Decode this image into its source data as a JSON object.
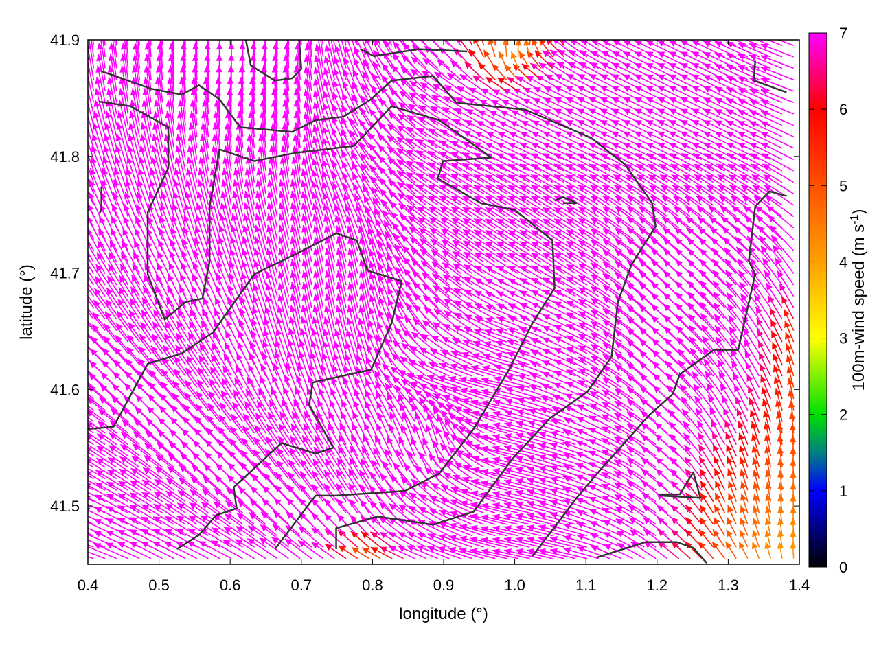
{
  "chart_data": {
    "type": "vector-field",
    "xlabel": "longitude (°)",
    "ylabel": "latitude (°)",
    "xlim": [
      0.4,
      1.4
    ],
    "ylim": [
      41.45,
      41.9
    ],
    "xticks": [
      "0.4",
      "0.5",
      "0.6",
      "0.7",
      "0.8",
      "0.9",
      "1.0",
      "1.1",
      "1.2",
      "1.3",
      "1.4"
    ],
    "yticks": [
      "41.5",
      "41.6",
      "41.7",
      "41.8",
      "41.9"
    ],
    "colorbar": {
      "label_main": "100m-wind speed (m s",
      "label_sup": "-1",
      "label_end": ")",
      "range": [
        0,
        7
      ],
      "ticks": [
        "0",
        "1",
        "2",
        "3",
        "4",
        "5",
        "6",
        "7"
      ],
      "stops": [
        {
          "value": 0,
          "color": "#000000"
        },
        {
          "value": 1,
          "color": "#0000ff"
        },
        {
          "value": 1.5,
          "color": "#008080"
        },
        {
          "value": 2,
          "color": "#00e000"
        },
        {
          "value": 3,
          "color": "#ffff00"
        },
        {
          "value": 4,
          "color": "#ffa000"
        },
        {
          "value": 5,
          "color": "#ff5000"
        },
        {
          "value": 6,
          "color": "#ff0000"
        },
        {
          "value": 7,
          "color": "#ff00ff"
        }
      ]
    },
    "vector_grid": {
      "lon": [
        0.4,
        0.5,
        0.6,
        0.7,
        0.8,
        0.9,
        1.0,
        1.1,
        1.2,
        1.3,
        1.4
      ],
      "lat": [
        41.9,
        41.85,
        41.8,
        41.75,
        41.7,
        41.65,
        41.6,
        41.55,
        41.5,
        41.45
      ],
      "uv_ms": [
        [
          [
            -1,
            9
          ],
          [
            -0.5,
            9
          ],
          [
            0,
            9
          ],
          [
            0,
            9
          ],
          [
            -3,
            8
          ],
          [
            -6,
            6
          ],
          [
            3,
            5
          ],
          [
            -6,
            5
          ],
          [
            -8,
            4
          ],
          [
            -8,
            4
          ],
          [
            -8,
            3
          ]
        ],
        [
          [
            -2,
            9
          ],
          [
            -1,
            9
          ],
          [
            0,
            9
          ],
          [
            -1,
            9
          ],
          [
            -4,
            8
          ],
          [
            -7,
            5
          ],
          [
            -6,
            3
          ],
          [
            -8,
            4
          ],
          [
            -8,
            4
          ],
          [
            -8,
            4
          ],
          [
            -8,
            3
          ]
        ],
        [
          [
            -3,
            9
          ],
          [
            -2,
            9
          ],
          [
            -1,
            9
          ],
          [
            -1,
            9
          ],
          [
            -5,
            7
          ],
          [
            -8,
            5
          ],
          [
            -8,
            4
          ],
          [
            -8,
            4
          ],
          [
            -8,
            4
          ],
          [
            -8,
            4
          ],
          [
            -8,
            4
          ]
        ],
        [
          [
            -4,
            9
          ],
          [
            -3,
            9
          ],
          [
            -2,
            9
          ],
          [
            -2,
            9
          ],
          [
            -4,
            8
          ],
          [
            -8,
            5
          ],
          [
            -8,
            5
          ],
          [
            -8,
            5
          ],
          [
            -7,
            5
          ],
          [
            -7,
            5
          ],
          [
            -7,
            5
          ]
        ],
        [
          [
            -5,
            8
          ],
          [
            -4,
            8
          ],
          [
            -3,
            9
          ],
          [
            -2,
            9
          ],
          [
            -2,
            9
          ],
          [
            -7,
            6
          ],
          [
            -8,
            5
          ],
          [
            -8,
            5
          ],
          [
            -7,
            6
          ],
          [
            -6,
            6
          ],
          [
            -5,
            7
          ]
        ],
        [
          [
            -6,
            7
          ],
          [
            -5,
            8
          ],
          [
            -4,
            8
          ],
          [
            -2,
            9
          ],
          [
            -2,
            9
          ],
          [
            -6,
            6
          ],
          [
            -8,
            3
          ],
          [
            -8,
            4
          ],
          [
            -7,
            6
          ],
          [
            -6,
            7
          ],
          [
            -2,
            5
          ]
        ],
        [
          [
            -7,
            6
          ],
          [
            -6,
            7
          ],
          [
            -5,
            8
          ],
          [
            -3,
            9
          ],
          [
            -3,
            8
          ],
          [
            -8,
            3
          ],
          [
            -9,
            2
          ],
          [
            -8,
            4
          ],
          [
            -7,
            6
          ],
          [
            -5,
            7
          ],
          [
            -1,
            5
          ]
        ],
        [
          [
            -8,
            5
          ],
          [
            -7,
            6
          ],
          [
            -6,
            7
          ],
          [
            -5,
            8
          ],
          [
            -4,
            8
          ],
          [
            -2,
            8
          ],
          [
            -9,
            2
          ],
          [
            -9,
            3
          ],
          [
            -7,
            5
          ],
          [
            -3,
            6
          ],
          [
            0,
            5
          ]
        ],
        [
          [
            -8,
            4
          ],
          [
            -8,
            5
          ],
          [
            -7,
            6
          ],
          [
            -6,
            7
          ],
          [
            -5,
            8
          ],
          [
            -7,
            5
          ],
          [
            -9,
            2
          ],
          [
            -9,
            3
          ],
          [
            -7,
            5
          ],
          [
            -2,
            5
          ],
          [
            0,
            4.5
          ]
        ],
        [
          [
            -9,
            3
          ],
          [
            -8,
            4
          ],
          [
            -8,
            4
          ],
          [
            -7,
            5
          ],
          [
            -4,
            2
          ],
          [
            -8,
            3
          ],
          [
            -9,
            2
          ],
          [
            -9,
            2
          ],
          [
            -6,
            4
          ],
          [
            -3,
            4
          ],
          [
            0,
            4
          ]
        ]
      ]
    },
    "contour_color": "#333333",
    "contours": [
      [
        [
          0.419,
          41.873
        ],
        [
          0.489,
          41.858
        ],
        [
          0.532,
          41.853
        ],
        [
          0.556,
          41.861
        ],
        [
          0.585,
          41.849
        ],
        [
          0.614,
          41.825
        ],
        [
          0.687,
          41.821
        ],
        [
          0.72,
          41.831
        ],
        [
          0.759,
          41.834
        ],
        [
          0.798,
          41.849
        ],
        [
          0.827,
          41.865
        ],
        [
          0.885,
          41.869
        ],
        [
          0.918,
          41.846
        ],
        [
          1.015,
          41.84
        ],
        [
          1.107,
          41.816
        ],
        [
          1.155,
          41.793
        ],
        [
          1.193,
          41.76
        ],
        [
          1.198,
          41.74
        ],
        [
          1.164,
          41.707
        ],
        [
          1.145,
          41.675
        ],
        [
          1.136,
          41.628
        ],
        [
          1.102,
          41.598
        ],
        [
          1.049,
          41.575
        ],
        [
          0.996,
          41.54
        ],
        [
          0.942,
          41.495
        ],
        [
          0.885,
          41.484
        ],
        [
          0.807,
          41.491
        ],
        [
          0.749,
          41.481
        ],
        [
          0.749,
          41.463
        ]
      ],
      [
        [
          0.416,
          41.847
        ],
        [
          0.46,
          41.843
        ],
        [
          0.513,
          41.825
        ],
        [
          0.513,
          41.79
        ],
        [
          0.484,
          41.752
        ],
        [
          0.484,
          41.699
        ],
        [
          0.508,
          41.66
        ],
        [
          0.537,
          41.675
        ],
        [
          0.561,
          41.678
        ],
        [
          0.571,
          41.71
        ],
        [
          0.571,
          41.757
        ],
        [
          0.585,
          41.806
        ],
        [
          0.634,
          41.796
        ],
        [
          0.692,
          41.803
        ],
        [
          0.774,
          41.809
        ],
        [
          0.827,
          41.843
        ],
        [
          0.894,
          41.831
        ],
        [
          0.967,
          41.799
        ],
        [
          0.899,
          41.796
        ],
        [
          0.892,
          41.781
        ],
        [
          0.952,
          41.76
        ],
        [
          1.0,
          41.754
        ],
        [
          1.053,
          41.728
        ],
        [
          1.056,
          41.687
        ],
        [
          1.025,
          41.657
        ],
        [
          0.991,
          41.616
        ],
        [
          0.942,
          41.566
        ],
        [
          0.894,
          41.528
        ],
        [
          0.846,
          41.513
        ],
        [
          0.749,
          41.509
        ],
        [
          0.72,
          41.509
        ],
        [
          0.663,
          41.463
        ]
      ],
      [
        [
          0.4,
          41.566
        ],
        [
          0.436,
          41.568
        ],
        [
          0.484,
          41.622
        ],
        [
          0.532,
          41.631
        ],
        [
          0.576,
          41.649
        ],
        [
          0.634,
          41.699
        ],
        [
          0.692,
          41.716
        ],
        [
          0.749,
          41.734
        ],
        [
          0.778,
          41.728
        ],
        [
          0.793,
          41.702
        ],
        [
          0.841,
          41.693
        ],
        [
          0.827,
          41.657
        ],
        [
          0.798,
          41.617
        ],
        [
          0.716,
          41.606
        ],
        [
          0.711,
          41.587
        ],
        [
          0.745,
          41.55
        ],
        [
          0.72,
          41.545
        ],
        [
          0.672,
          41.554
        ],
        [
          0.605,
          41.516
        ],
        [
          0.609,
          41.498
        ],
        [
          0.58,
          41.492
        ],
        [
          0.556,
          41.475
        ],
        [
          0.525,
          41.463
        ]
      ],
      [
        [
          0.622,
          41.9
        ],
        [
          0.629,
          41.878
        ],
        [
          0.663,
          41.865
        ],
        [
          0.687,
          41.867
        ],
        [
          0.7,
          41.875
        ],
        [
          0.697,
          41.9
        ]
      ],
      [
        [
          0.783,
          41.892
        ],
        [
          0.802,
          41.886
        ],
        [
          0.865,
          41.892
        ],
        [
          0.933,
          41.89
        ]
      ],
      [
        [
          1.382,
          41.766
        ],
        [
          1.358,
          41.77
        ],
        [
          1.338,
          41.757
        ],
        [
          1.329,
          41.71
        ],
        [
          1.338,
          41.699
        ],
        [
          1.314,
          41.634
        ],
        [
          1.28,
          41.634
        ],
        [
          1.232,
          41.613
        ],
        [
          1.222,
          41.596
        ],
        [
          1.189,
          41.578
        ],
        [
          1.116,
          41.528
        ],
        [
          1.087,
          41.507
        ],
        [
          1.025,
          41.457
        ]
      ],
      [
        [
          1.338,
          41.882
        ],
        [
          1.336,
          41.865
        ],
        [
          1.382,
          41.855
        ]
      ],
      [
        [
          1.056,
          41.762
        ],
        [
          1.068,
          41.765
        ],
        [
          1.087,
          41.76
        ],
        [
          1.068,
          41.76
        ]
      ],
      [
        [
          1.116,
          41.456
        ],
        [
          1.184,
          41.469
        ],
        [
          1.228,
          41.469
        ],
        [
          1.251,
          41.464
        ],
        [
          1.27,
          41.451
        ]
      ],
      [
        [
          1.203,
          41.509
        ],
        [
          1.261,
          41.507
        ],
        [
          1.251,
          41.529
        ],
        [
          1.242,
          41.52
        ],
        [
          1.232,
          41.51
        ],
        [
          1.203,
          41.51
        ]
      ],
      [
        [
          0.419,
          41.774
        ],
        [
          0.419,
          41.754
        ],
        [
          0.416,
          41.751
        ]
      ]
    ]
  }
}
